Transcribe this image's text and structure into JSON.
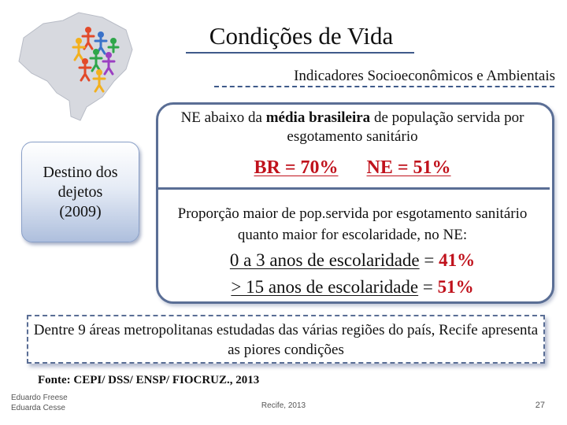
{
  "slide": {
    "title": "Condições de Vida",
    "subtitle": "Indicadores Socioeconômicos e Ambientais",
    "logo_icon": "brazil-map-people-icon"
  },
  "side_box": {
    "line1": "Destino dos",
    "line2": "dejetos",
    "line3": "(2009)"
  },
  "main": {
    "intro_before": "NE abaixo da ",
    "intro_bold": "média brasileira",
    "intro_after": " de população servida por esgotamento sanitário",
    "br_stat": "BR = 70%",
    "ne_stat": "NE = 51%",
    "proportion_text": "Proporção maior de pop.servida por esgotamento sanitário quanto maior for escolaridade, no NE:",
    "row1_label": "0 a 3 anos de escolaridade",
    "row1_eq": " = ",
    "row1_value": "41%",
    "row2_label": " > 15 anos de escolaridade",
    "row2_eq": " = ",
    "row2_value": "51%"
  },
  "bottom_box": {
    "text": "Dentre 9 áreas metropolitanas estudadas das várias regiões do país, Recife apresenta as piores condições"
  },
  "footer": {
    "source": "Fonte: CEPI/ DSS/ ENSP/ FIOCRUZ., 2013",
    "author1": "Eduardo Freese",
    "author2": "Eduarda Cesse",
    "center": "Recife, 2013",
    "page": "27"
  },
  "colors": {
    "accent": "#3f5a8a",
    "highlight_red": "#c0121c"
  }
}
